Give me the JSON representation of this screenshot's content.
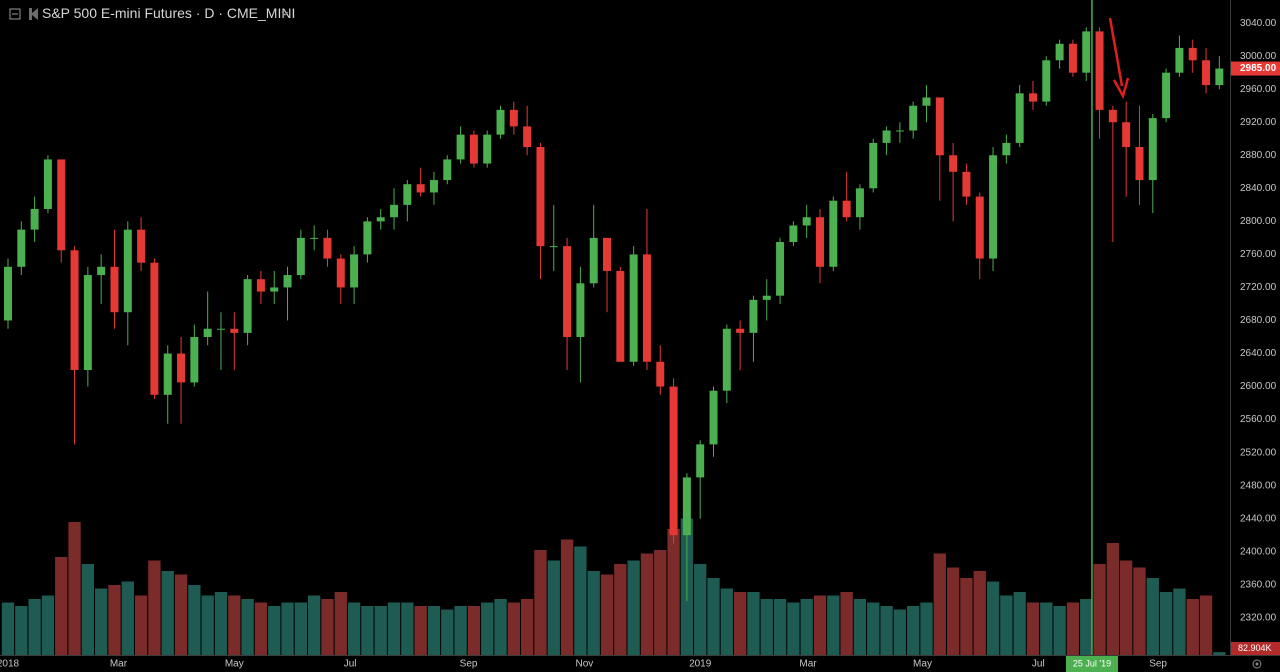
{
  "chart_data": {
    "type": "candlestick",
    "title": "S&P 500 E-mini Futures · D · CME_MINI",
    "x": [
      0,
      1,
      2,
      3,
      4,
      5,
      6,
      7,
      8,
      9,
      10,
      11,
      12,
      13,
      14,
      15,
      16,
      17,
      18,
      19,
      20,
      21,
      22,
      23,
      24,
      25,
      26,
      27,
      28,
      29,
      30,
      31,
      32,
      33,
      34,
      35,
      36,
      37,
      38,
      39,
      40,
      41,
      42,
      43,
      44,
      45,
      46,
      47,
      48,
      49,
      50,
      51,
      52,
      53,
      54,
      55,
      56,
      57,
      58,
      59,
      60,
      61,
      62,
      63,
      64,
      65,
      66,
      67,
      68,
      69,
      70,
      71,
      72,
      73,
      74,
      75,
      76,
      77,
      78,
      79,
      80,
      81,
      82,
      83,
      84,
      85,
      86,
      87,
      88,
      89,
      90,
      91
    ],
    "open": [
      2680,
      2745,
      2790,
      2815,
      2875,
      2765,
      2620,
      2735,
      2745,
      2690,
      2790,
      2750,
      2590,
      2640,
      2605,
      2660,
      2670,
      2670,
      2665,
      2730,
      2715,
      2720,
      2735,
      2780,
      2780,
      2755,
      2720,
      2760,
      2800,
      2805,
      2820,
      2845,
      2835,
      2850,
      2875,
      2905,
      2870,
      2905,
      2935,
      2915,
      2890,
      2770,
      2770,
      2660,
      2725,
      2780,
      2740,
      2630,
      2760,
      2630,
      2600,
      2420,
      2490,
      2530,
      2595,
      2670,
      2665,
      2705,
      2710,
      2775,
      2795,
      2805,
      2745,
      2825,
      2805,
      2840,
      2895,
      2910,
      2910,
      2940,
      2950,
      2880,
      2860,
      2830,
      2755,
      2880,
      2895,
      2955,
      2945,
      2995,
      3015,
      2980,
      3030,
      2935,
      2920,
      2890,
      2850,
      2925,
      2980,
      3010,
      2995,
      2965
    ],
    "high": [
      2755,
      2800,
      2830,
      2880,
      2870,
      2770,
      2745,
      2760,
      2790,
      2800,
      2805,
      2755,
      2650,
      2660,
      2675,
      2715,
      2690,
      2690,
      2735,
      2740,
      2740,
      2745,
      2790,
      2795,
      2790,
      2760,
      2770,
      2805,
      2815,
      2840,
      2850,
      2865,
      2860,
      2880,
      2915,
      2910,
      2910,
      2940,
      2945,
      2940,
      2895,
      2820,
      2780,
      2745,
      2820,
      2780,
      2745,
      2770,
      2815,
      2650,
      2610,
      2495,
      2535,
      2600,
      2675,
      2680,
      2710,
      2730,
      2780,
      2800,
      2820,
      2815,
      2830,
      2860,
      2845,
      2900,
      2915,
      2920,
      2945,
      2965,
      2950,
      2895,
      2870,
      2835,
      2890,
      2905,
      2965,
      2970,
      3000,
      3020,
      3020,
      3035,
      3035,
      2940,
      2945,
      2940,
      2930,
      2985,
      3025,
      3020,
      3010,
      3000
    ],
    "low": [
      2670,
      2735,
      2775,
      2810,
      2750,
      2530,
      2600,
      2700,
      2670,
      2650,
      2740,
      2585,
      2555,
      2555,
      2600,
      2650,
      2620,
      2620,
      2650,
      2700,
      2700,
      2680,
      2730,
      2765,
      2745,
      2700,
      2700,
      2750,
      2790,
      2790,
      2800,
      2830,
      2820,
      2845,
      2870,
      2865,
      2865,
      2900,
      2905,
      2880,
      2730,
      2740,
      2620,
      2605,
      2720,
      2690,
      2630,
      2625,
      2620,
      2590,
      2410,
      2340,
      2440,
      2515,
      2580,
      2620,
      2630,
      2680,
      2700,
      2770,
      2780,
      2725,
      2740,
      2800,
      2790,
      2835,
      2880,
      2895,
      2900,
      2920,
      2825,
      2800,
      2820,
      2730,
      2740,
      2870,
      2890,
      2935,
      2940,
      2985,
      2975,
      2970,
      2900,
      2775,
      2830,
      2820,
      2810,
      2920,
      2975,
      2980,
      2955,
      2960
    ],
    "close": [
      2745,
      2790,
      2815,
      2875,
      2765,
      2620,
      2735,
      2745,
      2690,
      2790,
      2750,
      2590,
      2640,
      2605,
      2660,
      2670,
      2670,
      2665,
      2730,
      2715,
      2720,
      2735,
      2780,
      2780,
      2755,
      2720,
      2760,
      2800,
      2805,
      2820,
      2845,
      2835,
      2850,
      2875,
      2905,
      2870,
      2905,
      2935,
      2915,
      2890,
      2770,
      2770,
      2660,
      2725,
      2780,
      2740,
      2630,
      2760,
      2630,
      2600,
      2420,
      2490,
      2530,
      2595,
      2670,
      2665,
      2705,
      2710,
      2775,
      2795,
      2805,
      2745,
      2825,
      2805,
      2840,
      2895,
      2910,
      2910,
      2940,
      2950,
      2880,
      2860,
      2830,
      2755,
      2880,
      2895,
      2955,
      2945,
      2995,
      3015,
      2980,
      3030,
      2935,
      2920,
      2890,
      2850,
      2925,
      2980,
      3010,
      2995,
      2965,
      2985
    ],
    "volume": [
      1500,
      1400,
      1600,
      1700,
      2800,
      3800,
      2600,
      1900,
      2000,
      2100,
      1700,
      2700,
      2400,
      2300,
      2000,
      1700,
      1800,
      1700,
      1600,
      1500,
      1400,
      1500,
      1500,
      1700,
      1600,
      1800,
      1500,
      1400,
      1400,
      1500,
      1500,
      1400,
      1400,
      1300,
      1400,
      1400,
      1500,
      1600,
      1500,
      1600,
      3000,
      2700,
      3300,
      3100,
      2400,
      2300,
      2600,
      2700,
      2900,
      3000,
      3600,
      3900,
      2600,
      2200,
      1900,
      1800,
      1800,
      1600,
      1600,
      1500,
      1600,
      1700,
      1700,
      1800,
      1600,
      1500,
      1400,
      1300,
      1400,
      1500,
      2900,
      2500,
      2200,
      2400,
      2100,
      1700,
      1800,
      1500,
      1500,
      1400,
      1500,
      1600,
      2600,
      3200,
      2700,
      2500,
      2200,
      1800,
      1900,
      1600,
      1700,
      82.904
    ],
    "up_color": "#4caf50",
    "down_color": "#e53935",
    "volume_up_color": "#1d5b53",
    "volume_down_color": "#7c2b2b",
    "xlim": [
      -0.6,
      91.8
    ],
    "ylim": [
      2275,
      3068
    ],
    "vlim": [
      0,
      5000
    ],
    "xticks": [
      {
        "value": 0,
        "label": "2018"
      },
      {
        "value": 8.3,
        "label": "Mar"
      },
      {
        "value": 17,
        "label": "May"
      },
      {
        "value": 25.7,
        "label": "Jul"
      },
      {
        "value": 34.6,
        "label": "Sep"
      },
      {
        "value": 43.3,
        "label": "Nov"
      },
      {
        "value": 52,
        "label": "2019"
      },
      {
        "value": 60.1,
        "label": "Mar"
      },
      {
        "value": 68.7,
        "label": "May"
      },
      {
        "value": 77.4,
        "label": "Jul"
      },
      {
        "value": 86.4,
        "label": "Sep"
      }
    ],
    "yticks": [
      {
        "value": 3040,
        "label": "3040.00"
      },
      {
        "value": 3000,
        "label": "3000.00"
      },
      {
        "value": 2960,
        "label": "2960.00"
      },
      {
        "value": 2920,
        "label": "2920.00"
      },
      {
        "value": 2880,
        "label": "2880.00"
      },
      {
        "value": 2840,
        "label": "2840.00"
      },
      {
        "value": 2800,
        "label": "2800.00"
      },
      {
        "value": 2760,
        "label": "2760.00"
      },
      {
        "value": 2720,
        "label": "2720.00"
      },
      {
        "value": 2680,
        "label": "2680.00"
      },
      {
        "value": 2640,
        "label": "2640.00"
      },
      {
        "value": 2600,
        "label": "2600.00"
      },
      {
        "value": 2560,
        "label": "2560.00"
      },
      {
        "value": 2520,
        "label": "2520.00"
      },
      {
        "value": 2480,
        "label": "2480.00"
      },
      {
        "value": 2440,
        "label": "2440.00"
      },
      {
        "value": 2400,
        "label": "2400.00"
      },
      {
        "value": 2360,
        "label": "2360.00"
      },
      {
        "value": 2320,
        "label": "2320.00"
      }
    ],
    "grid": false,
    "last_price": {
      "value": 2985,
      "label": "2985.00"
    },
    "last_volume": {
      "value": 82.904,
      "label": "82.904K"
    },
    "crosshair": {
      "x": 81.43,
      "label": "25 Jul '19",
      "color": "#4caf50"
    }
  }
}
